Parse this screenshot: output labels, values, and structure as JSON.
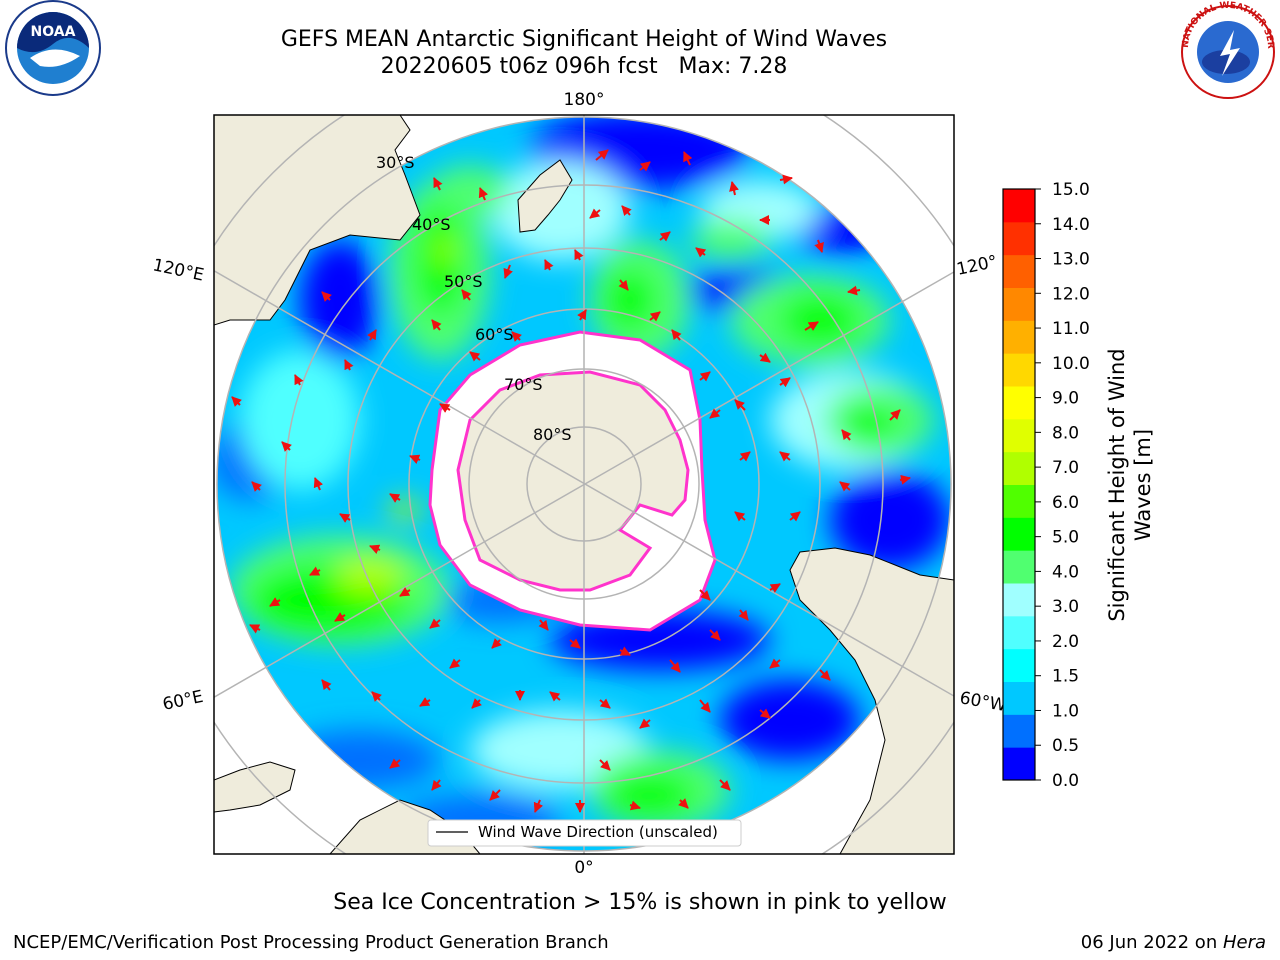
{
  "title": {
    "line1": "GEFS MEAN Antarctic Significant Height of Wind Waves",
    "line2": "20220605 t06z 096h fcst   Max: 7.28"
  },
  "map": {
    "projection": "south-polar-stereographic",
    "longitude_labels": {
      "top": "180°",
      "bottom": "0°",
      "left_upper": "120°E",
      "left_lower": "60°E",
      "right_upper": "120°",
      "right_lower": "60°W"
    },
    "latitude_labels": [
      "30°S",
      "40°S",
      "50°S",
      "60°S",
      "70°S",
      "80°S"
    ],
    "legend": "Wind Wave Direction (unscaled)",
    "colors": {
      "land": "#efecdc",
      "ice_edge": "#ff33cc",
      "arrow": "#ee1111",
      "grid": "#b4b4b4"
    }
  },
  "colorbar": {
    "label": "Significant Height of Wind Waves [m]",
    "ticks": [
      "0.0",
      "0.5",
      "1.0",
      "1.5",
      "2.0",
      "3.0",
      "4.0",
      "5.0",
      "6.0",
      "7.0",
      "8.0",
      "9.0",
      "10.0",
      "11.0",
      "12.0",
      "13.0",
      "14.0",
      "15.0"
    ],
    "colors": [
      "#0000ff",
      "#0070ff",
      "#00c8ff",
      "#00ffff",
      "#50ffff",
      "#a0ffff",
      "#50ff70",
      "#00ff00",
      "#50ff00",
      "#b0ff00",
      "#e0ff00",
      "#ffff00",
      "#ffd800",
      "#ffb000",
      "#ff8800",
      "#ff6000",
      "#ff3000",
      "#ff0000"
    ]
  },
  "chart_data": {
    "type": "heatmap",
    "variable": "Significant Height of Wind Waves [m]",
    "max_value": 7.28,
    "value_range": [
      0,
      15
    ],
    "title": "GEFS MEAN Antarctic Significant Height of Wind Waves",
    "subtitle": "20220605 t06z 096h fcst   Max: 7.28"
  },
  "logos": {
    "left": "NOAA",
    "right": "NATIONAL WEATHER SERVICE"
  },
  "ice_note": "Sea Ice Concentration > 15% is shown in pink to yellow",
  "footer": {
    "left": "NCEP/EMC/Verification Post Processing Product Generation Branch",
    "date": "06 Jun 2022 on ",
    "host": "Hera"
  }
}
